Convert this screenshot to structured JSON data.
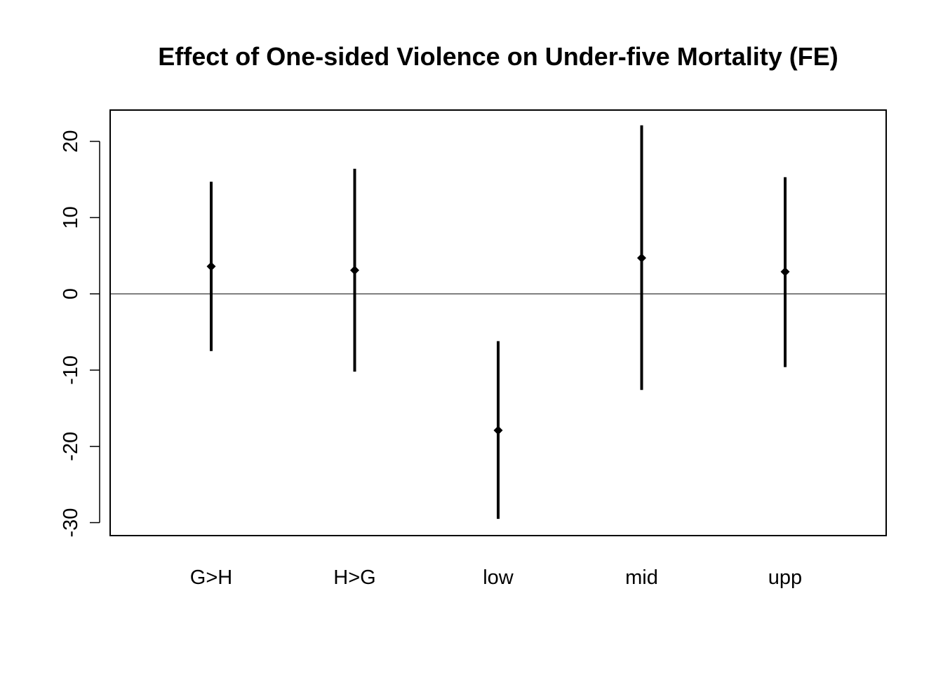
{
  "chart_data": {
    "type": "scatter",
    "title": "Effect of One-sided Violence on Under-five Mortality (FE)",
    "xlabel": "",
    "ylabel": "",
    "categories": [
      "G>H",
      "H>G",
      "low",
      "mid",
      "upp"
    ],
    "estimates": [
      3.6,
      3.1,
      -17.9,
      4.7,
      2.9
    ],
    "lower": [
      -7.5,
      -10.2,
      -29.5,
      -12.6,
      -9.6
    ],
    "upper": [
      14.7,
      16.4,
      -6.2,
      22.1,
      15.3
    ],
    "ylim": [
      -31.7,
      24.1
    ],
    "yticks": [
      -30,
      -20,
      -10,
      0,
      10,
      20
    ],
    "reference_line": 0,
    "grid": false,
    "legend": "none",
    "point_color": "#000000",
    "line_color": "#000000"
  }
}
